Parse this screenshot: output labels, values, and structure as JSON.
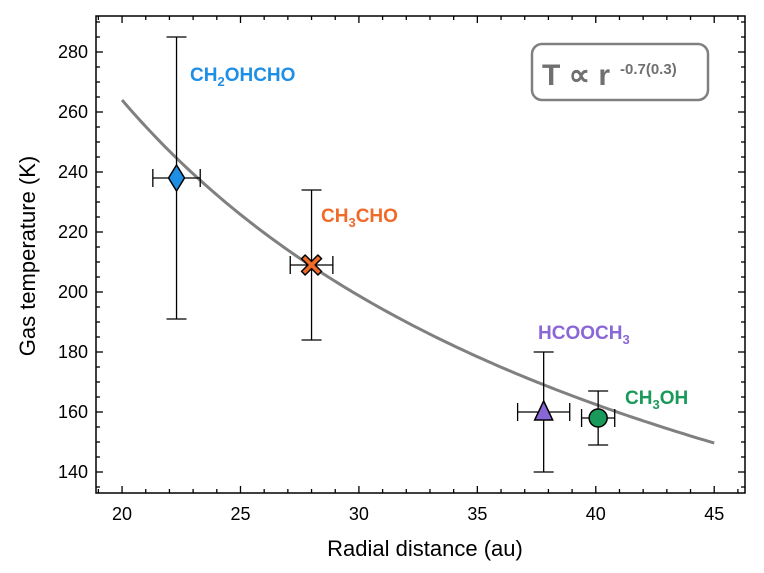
{
  "chart_data": {
    "type": "scatter",
    "xlabel": "Radial distance (au)",
    "ylabel": "Gas temperature (K)",
    "xlim": [
      18.9,
      46.3
    ],
    "ylim": [
      133,
      292
    ],
    "x_ticks": [
      20,
      25,
      30,
      35,
      40,
      45
    ],
    "y_ticks": [
      140,
      160,
      180,
      200,
      220,
      240,
      260,
      280
    ],
    "fit": {
      "label_main": "T ∝ r",
      "label_exp": "-0.7(0.3)",
      "exponent": -0.7,
      "ref_r": 20,
      "ref_T": 264,
      "x_range": [
        20,
        45
      ],
      "color": "#808080"
    },
    "points": [
      {
        "name": "CH2OHCHO",
        "label_parts": [
          "CH",
          "2",
          "OHCHO"
        ],
        "x": 22.3,
        "y": 238,
        "xerr": 1.0,
        "yerr_lo": 47,
        "yerr_hi": 47,
        "marker": "diamond",
        "color": "#1f8fe5"
      },
      {
        "name": "CH3CHO",
        "label_parts": [
          "CH",
          "3",
          "CHO"
        ],
        "x": 28.0,
        "y": 209,
        "xerr": 0.9,
        "yerr_lo": 25,
        "yerr_hi": 25,
        "marker": "x",
        "color": "#f06a2a"
      },
      {
        "name": "HCOOCH3",
        "label_parts": [
          "HCOOCH",
          "3",
          ""
        ],
        "x": 37.8,
        "y": 160,
        "xerr": 1.1,
        "yerr_lo": 20,
        "yerr_hi": 20,
        "marker": "triangle",
        "color": "#8a67d6"
      },
      {
        "name": "CH3OH",
        "label_parts": [
          "CH",
          "3",
          "OH"
        ],
        "x": 40.1,
        "y": 158,
        "xerr": 0.7,
        "yerr_lo": 9,
        "yerr_hi": 9,
        "marker": "circle",
        "color": "#1a9a5a"
      }
    ]
  }
}
